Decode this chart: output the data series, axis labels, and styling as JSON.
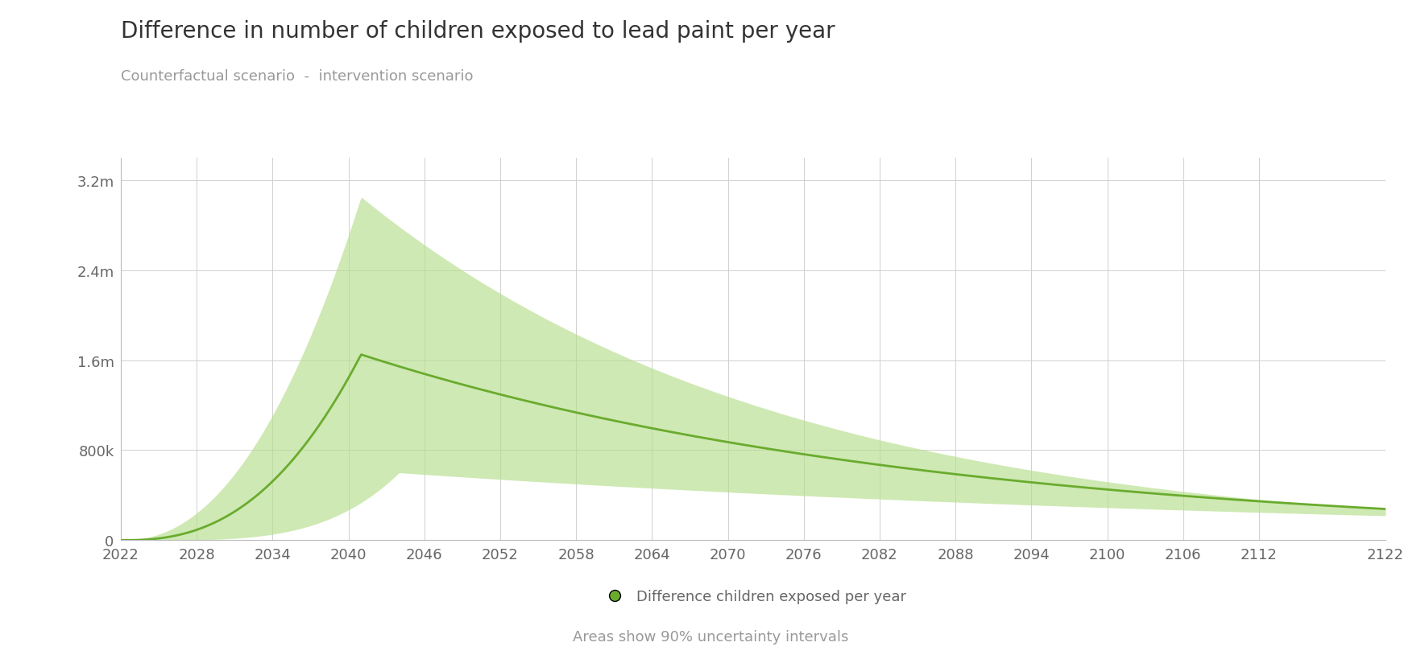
{
  "title": "Difference in number of children exposed to lead paint per year",
  "subtitle": "Counterfactual scenario  -  intervention scenario",
  "legend_label": "Difference children exposed per year",
  "footnote": "Areas show 90% uncertainty intervals",
  "x_start": 2022,
  "x_end": 2122,
  "x_ticks": [
    2022,
    2028,
    2034,
    2040,
    2046,
    2052,
    2058,
    2064,
    2070,
    2076,
    2082,
    2088,
    2094,
    2100,
    2106,
    2112,
    2122
  ],
  "y_ticks": [
    0,
    800000,
    1600000,
    2400000,
    3200000
  ],
  "y_tick_labels": [
    "0",
    "800k",
    "1.6m",
    "2.4m",
    "3.2m"
  ],
  "ylim": [
    0,
    3400000
  ],
  "line_color": "#6aab2e",
  "fill_color": "#b5de8a",
  "fill_alpha": 0.65,
  "background_color": "#ffffff",
  "grid_color": "#d0d0d0",
  "title_fontsize": 20,
  "subtitle_fontsize": 13,
  "tick_fontsize": 13,
  "legend_fontsize": 13
}
